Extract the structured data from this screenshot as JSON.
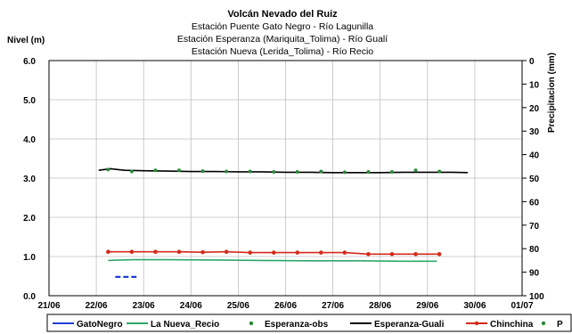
{
  "chart_data": {
    "type": "line",
    "title": "Volcán Nevado del Ruiz",
    "subtitles": [
      "Estación Puente Gato Negro - Río Lagunilla",
      "Estación Esperanza (Mariquita_Tolima) - Río Gualí",
      "Estación Nueva (Lerida_Tolima) - Río Recio"
    ],
    "ylabel_left": "Nivel (m)",
    "ylabel_right": "Precipitacion (mm)",
    "x_ticks": [
      "21/06",
      "22/06",
      "23/06",
      "24/06",
      "25/06",
      "26/06",
      "27/06",
      "28/06",
      "29/06",
      "30/06",
      "01/07"
    ],
    "y_left_ticks": [
      "0.0",
      "1.0",
      "2.0",
      "3.0",
      "4.0",
      "5.0",
      "6.0"
    ],
    "y_right_ticks": [
      "0",
      "10",
      "20",
      "30",
      "40",
      "50",
      "60",
      "70",
      "80",
      "90",
      "100"
    ],
    "ylim_left": [
      0,
      6
    ],
    "ylim_right": [
      0,
      100
    ],
    "right_axis_inverted": true,
    "xlim": [
      21,
      31
    ],
    "grid": true,
    "legend_position": "bottom",
    "series": [
      {
        "name": "GatoNegro",
        "color": "#1f3fd8",
        "dash": true,
        "x": [
          22.4,
          22.55,
          22.7,
          22.85
        ],
        "y": [
          0.48,
          0.48,
          0.48,
          0.48
        ]
      },
      {
        "name": "La Nueva_Recio",
        "color": "#2ea86a",
        "x": [
          22.25,
          22.8,
          23.5,
          24.5,
          25.5,
          26.5,
          27.5,
          28.5,
          29.2
        ],
        "y": [
          0.9,
          0.92,
          0.92,
          0.91,
          0.9,
          0.89,
          0.89,
          0.88,
          0.88
        ]
      },
      {
        "name": "Esperanza-obs",
        "color": "#2a8a3a",
        "marker": "dot",
        "x": [
          22.25,
          22.75,
          23.25,
          23.75,
          24.25,
          24.75,
          25.25,
          25.75,
          26.25,
          26.75,
          27.25,
          27.75,
          28.25,
          28.75,
          29.25
        ],
        "y": [
          3.22,
          3.17,
          3.2,
          3.2,
          3.18,
          3.17,
          3.17,
          3.16,
          3.16,
          3.17,
          3.15,
          3.16,
          3.16,
          3.2,
          3.17
        ]
      },
      {
        "name": "Esperanza-Guali",
        "color": "#000000",
        "x": [
          22.05,
          22.3,
          22.6,
          23.0,
          23.5,
          24.0,
          24.5,
          25.0,
          25.5,
          26.0,
          26.5,
          27.0,
          27.5,
          28.0,
          28.5,
          29.0,
          29.5,
          29.85
        ],
        "y": [
          3.2,
          3.24,
          3.2,
          3.19,
          3.18,
          3.17,
          3.17,
          3.16,
          3.16,
          3.15,
          3.15,
          3.14,
          3.14,
          3.14,
          3.15,
          3.15,
          3.15,
          3.14
        ]
      },
      {
        "name": "Chinchina",
        "color": "#d42a1a",
        "marker": "dot",
        "x": [
          22.25,
          22.75,
          23.25,
          23.75,
          24.25,
          24.75,
          25.25,
          25.75,
          26.25,
          26.75,
          27.25,
          27.75,
          28.25,
          28.75,
          29.25
        ],
        "y": [
          1.12,
          1.12,
          1.12,
          1.12,
          1.11,
          1.12,
          1.1,
          1.1,
          1.1,
          1.1,
          1.1,
          1.06,
          1.06,
          1.06,
          1.06
        ]
      },
      {
        "name": "P",
        "color": "#2a8a3a",
        "marker": "dot",
        "x": [],
        "y": []
      }
    ]
  }
}
